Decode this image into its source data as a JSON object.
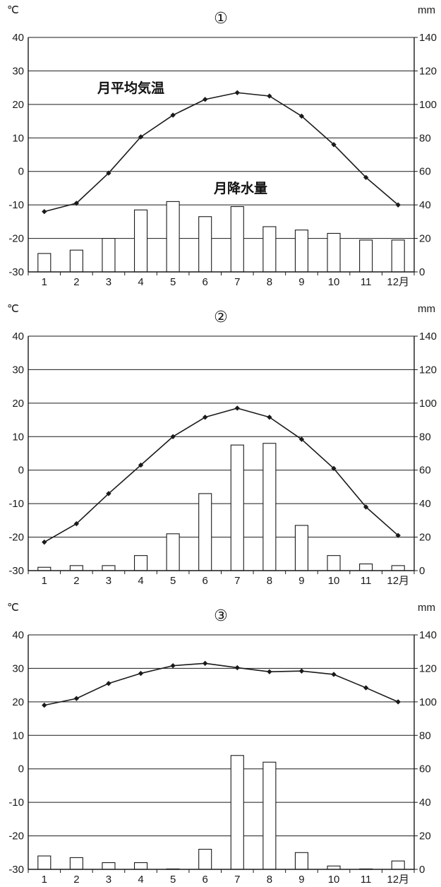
{
  "colors": {
    "line": "#1a1a1a",
    "bar_fill": "#ffffff",
    "bar_stroke": "#1a1a1a",
    "grid": "#1a1a1a"
  },
  "annotations": {
    "temperature": "月平均気温",
    "precipitation": "月降水量"
  },
  "chart_data": [
    {
      "type": "bar",
      "title": "①",
      "y_left_unit": "℃",
      "y_right_unit": "mm",
      "y_left_ticks": [
        "40",
        "30",
        "20",
        "10",
        "0",
        "-10",
        "-20",
        "-30"
      ],
      "y_right_ticks": [
        "140",
        "120",
        "100",
        "80",
        "60",
        "40",
        "20",
        "0"
      ],
      "x_ticks": [
        "1",
        "2",
        "3",
        "4",
        "5",
        "6",
        "7",
        "8",
        "9",
        "10",
        "11",
        "12月"
      ],
      "ylim_left": [
        -30,
        40
      ],
      "ylim_right": [
        0,
        140
      ],
      "grid": true,
      "series": [
        {
          "name": "月平均気温",
          "type": "line",
          "axis": "left",
          "values": [
            -12,
            -9.5,
            -0.5,
            10.3,
            16.8,
            21.5,
            23.5,
            22.5,
            16.5,
            8,
            -1.8,
            -10
          ]
        },
        {
          "name": "月降水量",
          "type": "bar",
          "axis": "right",
          "values": [
            11,
            13,
            20,
            37,
            42,
            33,
            39,
            27,
            25,
            23,
            19,
            19
          ]
        }
      ]
    },
    {
      "type": "bar",
      "title": "②",
      "y_left_unit": "℃",
      "y_right_unit": "mm",
      "y_left_ticks": [
        "40",
        "30",
        "20",
        "10",
        "0",
        "-10",
        "-20",
        "-30"
      ],
      "y_right_ticks": [
        "140",
        "120",
        "100",
        "80",
        "60",
        "40",
        "20",
        "0"
      ],
      "x_ticks": [
        "1",
        "2",
        "3",
        "4",
        "5",
        "6",
        "7",
        "8",
        "9",
        "10",
        "11",
        "12月"
      ],
      "ylim_left": [
        -30,
        40
      ],
      "ylim_right": [
        0,
        140
      ],
      "grid": true,
      "series": [
        {
          "name": "",
          "type": "line",
          "axis": "left",
          "values": [
            -21.5,
            -16,
            -7,
            1.5,
            10,
            15.8,
            18.5,
            15.8,
            9.2,
            0.5,
            -11,
            -19.5
          ]
        },
        {
          "name": "",
          "type": "bar",
          "axis": "right",
          "values": [
            2,
            3,
            3,
            9,
            22,
            46,
            75,
            76,
            27,
            9,
            4,
            3
          ]
        }
      ]
    },
    {
      "type": "bar",
      "title": "③",
      "y_left_unit": "℃",
      "y_right_unit": "mm",
      "y_left_ticks": [
        "40",
        "30",
        "20",
        "10",
        "0",
        "-10",
        "-20",
        "-30"
      ],
      "y_right_ticks": [
        "140",
        "120",
        "100",
        "80",
        "60",
        "40",
        "20",
        "0"
      ],
      "x_ticks": [
        "1",
        "2",
        "3",
        "4",
        "5",
        "6",
        "7",
        "8",
        "9",
        "10",
        "11",
        "12月"
      ],
      "ylim_left": [
        -30,
        40
      ],
      "ylim_right": [
        0,
        140
      ],
      "grid": true,
      "series": [
        {
          "name": "",
          "type": "line",
          "axis": "left",
          "values": [
            19,
            21,
            25.5,
            28.5,
            30.8,
            31.5,
            30.2,
            29,
            29.2,
            28.2,
            24.2,
            20
          ]
        },
        {
          "name": "",
          "type": "bar",
          "axis": "right",
          "values": [
            8,
            7,
            4,
            4,
            0,
            12,
            68,
            64,
            10,
            2,
            0,
            5
          ]
        }
      ]
    }
  ]
}
